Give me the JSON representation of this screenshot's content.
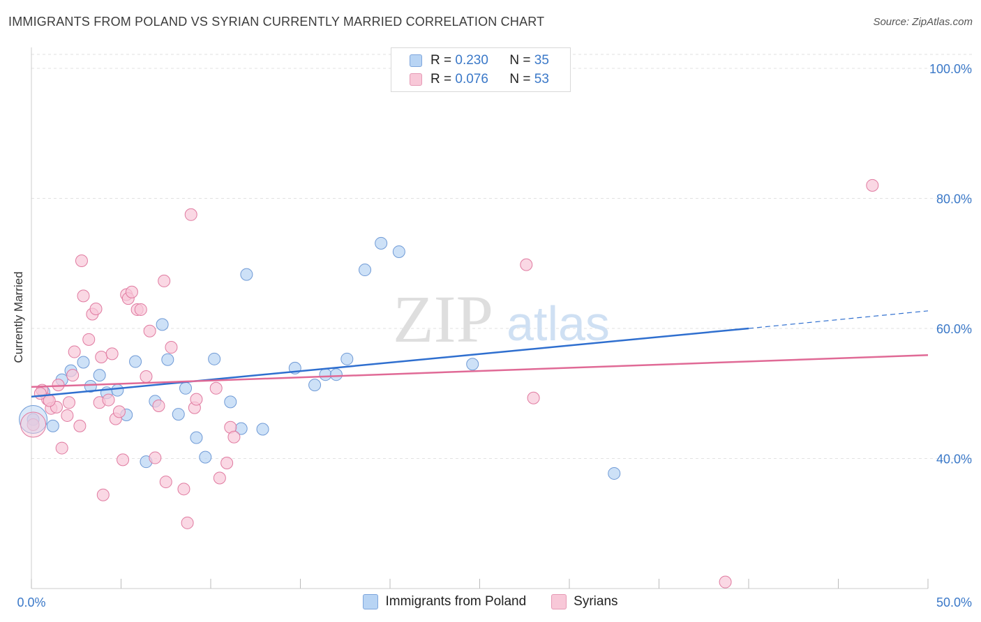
{
  "title": "IMMIGRANTS FROM POLAND VS SYRIAN CURRENTLY MARRIED CORRELATION CHART",
  "source": "Source: ZipAtlas.com",
  "watermark": {
    "zip": "ZIP",
    "atlas": "atlas"
  },
  "legend": {
    "r_label": "R = ",
    "n_label": "N = ",
    "rows": [
      {
        "r": "0.230",
        "n": "35",
        "color": "#b8d4f4"
      },
      {
        "r": "0.076",
        "n": "53",
        "color": "#f8c8d8"
      }
    ]
  },
  "chart_data": {
    "type": "scatter",
    "title": "IMMIGRANTS FROM POLAND VS SYRIAN CURRENTLY MARRIED CORRELATION CHART",
    "xlabel": "",
    "ylabel": "Currently Married",
    "xlim": [
      0,
      50
    ],
    "ylim": [
      20,
      103
    ],
    "x_tick_labels": [
      "0.0%",
      "50.0%"
    ],
    "y_ticks": [
      40,
      60,
      80,
      100
    ],
    "y_tick_labels": [
      "40.0%",
      "60.0%",
      "80.0%",
      "100.0%"
    ],
    "grid": true,
    "legend_position": "bottom-center",
    "series": [
      {
        "name": "Immigrants from Poland",
        "color": "#6f9ad6",
        "fill": "#b8d4f4",
        "points": [
          [
            0.1,
            46.0
          ],
          [
            0.7,
            50.2
          ],
          [
            1.2,
            45.0
          ],
          [
            1.7,
            52.1
          ],
          [
            2.2,
            53.5
          ],
          [
            2.9,
            54.8
          ],
          [
            3.3,
            51.1
          ],
          [
            3.8,
            52.8
          ],
          [
            4.2,
            50.1
          ],
          [
            4.8,
            50.5
          ],
          [
            5.3,
            46.7
          ],
          [
            5.8,
            54.9
          ],
          [
            6.4,
            39.5
          ],
          [
            6.9,
            48.8
          ],
          [
            7.3,
            60.6
          ],
          [
            7.6,
            55.2
          ],
          [
            8.2,
            46.8
          ],
          [
            8.6,
            50.8
          ],
          [
            9.2,
            43.2
          ],
          [
            9.7,
            40.2
          ],
          [
            10.2,
            55.3
          ],
          [
            11.1,
            48.7
          ],
          [
            11.7,
            44.6
          ],
          [
            12.0,
            68.3
          ],
          [
            12.9,
            44.5
          ],
          [
            14.7,
            53.9
          ],
          [
            15.8,
            51.3
          ],
          [
            16.4,
            52.9
          ],
          [
            17.0,
            52.9
          ],
          [
            17.6,
            55.3
          ],
          [
            18.6,
            69.0
          ],
          [
            19.5,
            73.1
          ],
          [
            20.5,
            71.8
          ],
          [
            24.6,
            54.5
          ],
          [
            32.5,
            37.7
          ]
        ]
      },
      {
        "name": "Syrians",
        "color": "#e07aa0",
        "fill": "#f8c8d8",
        "points": [
          [
            0.1,
            45.2
          ],
          [
            0.6,
            50.5
          ],
          [
            0.9,
            49.1
          ],
          [
            1.1,
            47.7
          ],
          [
            1.4,
            47.9
          ],
          [
            1.5,
            51.3
          ],
          [
            1.7,
            41.6
          ],
          [
            2.0,
            46.6
          ],
          [
            2.1,
            48.6
          ],
          [
            2.3,
            52.8
          ],
          [
            2.4,
            56.4
          ],
          [
            2.7,
            45.0
          ],
          [
            2.8,
            70.4
          ],
          [
            2.9,
            65.0
          ],
          [
            3.2,
            58.3
          ],
          [
            3.4,
            62.2
          ],
          [
            3.6,
            63.0
          ],
          [
            3.8,
            48.6
          ],
          [
            3.9,
            55.6
          ],
          [
            4.0,
            34.4
          ],
          [
            4.3,
            49.0
          ],
          [
            4.5,
            56.1
          ],
          [
            4.7,
            46.1
          ],
          [
            4.9,
            47.2
          ],
          [
            5.1,
            39.8
          ],
          [
            5.3,
            65.2
          ],
          [
            5.4,
            64.6
          ],
          [
            5.6,
            65.6
          ],
          [
            5.9,
            62.9
          ],
          [
            6.1,
            62.9
          ],
          [
            6.4,
            52.6
          ],
          [
            6.6,
            59.6
          ],
          [
            6.9,
            40.1
          ],
          [
            7.1,
            48.1
          ],
          [
            7.4,
            67.3
          ],
          [
            7.5,
            36.4
          ],
          [
            7.8,
            57.1
          ],
          [
            8.5,
            35.3
          ],
          [
            8.7,
            30.1
          ],
          [
            8.9,
            77.5
          ],
          [
            9.1,
            47.8
          ],
          [
            9.2,
            49.1
          ],
          [
            10.3,
            50.8
          ],
          [
            10.5,
            37.0
          ],
          [
            10.9,
            39.3
          ],
          [
            11.1,
            44.8
          ],
          [
            11.3,
            43.3
          ],
          [
            27.6,
            69.8
          ],
          [
            28.0,
            49.3
          ],
          [
            38.7,
            21.0
          ],
          [
            46.9,
            82.0
          ],
          [
            0.5,
            50.0
          ],
          [
            1.0,
            48.9
          ]
        ]
      }
    ],
    "trend_lines": [
      {
        "series": "Immigrants from Poland",
        "from": [
          0,
          49.5
        ],
        "to": [
          40,
          60.0
        ],
        "dashed_to": [
          50,
          62.7
        ]
      },
      {
        "series": "Syrians",
        "from": [
          0,
          51.0
        ],
        "to": [
          50,
          55.9
        ]
      }
    ]
  }
}
